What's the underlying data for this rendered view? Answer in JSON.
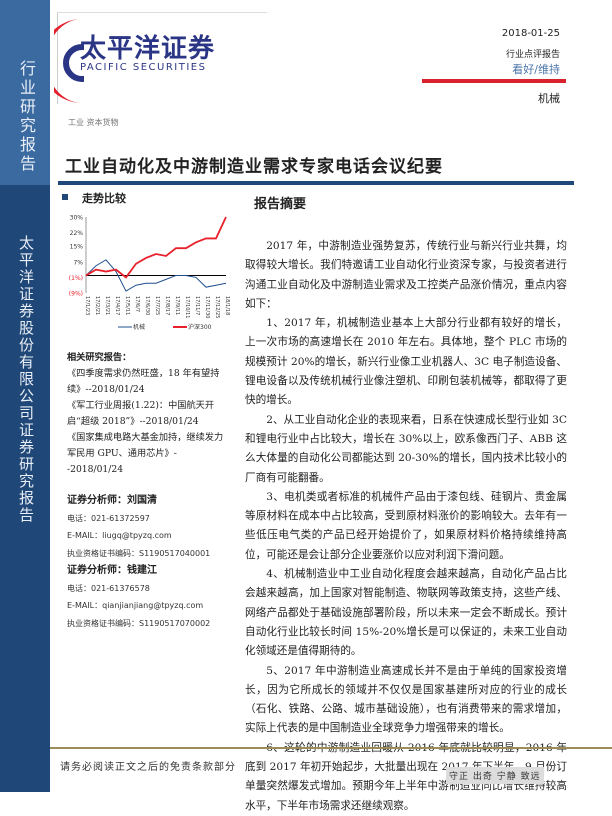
{
  "sidebar": {
    "top_label": "行业研究报告",
    "bottom_label": "太平洋证券股份有限公司证券研究报告"
  },
  "logo": {
    "cn": "太平洋证券",
    "en": "PACIFIC SECURITIES"
  },
  "header": {
    "date": "2018-01-25",
    "report_type": "行业点评报告",
    "rating": "看好/维持",
    "sector": "机械"
  },
  "industry": "工业  资本货物",
  "title": "工业自动化及中游制造业需求专家电话会议纪要",
  "trend_title": "走势比较",
  "summary_title": "报告摘要",
  "chart_data": {
    "type": "line",
    "categories": [
      "17/1/23",
      "17/2/21",
      "17/3/21",
      "17/4/17",
      "17/5/11",
      "17/6/7",
      "17/6/30",
      "17/7/25",
      "17/8/17",
      "17/9/11",
      "17/10/11",
      "17/11/7",
      "17/11/30",
      "17/12/25",
      "18/1/18"
    ],
    "y_ticks": [
      "30%",
      "22%",
      "15%",
      "7%",
      "(1%)",
      "(9%)"
    ],
    "ylim": [
      -9,
      30
    ],
    "series": [
      {
        "name": "机械",
        "color": "#1f4f8f",
        "values": [
          0,
          5,
          8,
          2,
          -8,
          -5,
          -4,
          -4,
          -2,
          0,
          0,
          -1,
          -6,
          -5,
          -4
        ]
      },
      {
        "name": "沪深300",
        "color": "#e8212c",
        "values": [
          0,
          3,
          2,
          3,
          -1,
          6,
          9,
          11,
          10,
          14,
          14,
          17,
          19,
          19,
          30
        ]
      }
    ],
    "legend": "bottom"
  },
  "related": {
    "heading": "相关研究报告：",
    "items": [
      "《四季度需求仍然旺盛，18 年有望持续》--2018/01/24",
      "《军工行业周报(1.22)：中国航天开启“超级 2018”》--2018/01/24",
      "《国家集成电路大基金加持，继续发力军民用 GPU、通用芯片》--2018/01/24"
    ]
  },
  "analysts": [
    {
      "title": "证券分析师：刘国清",
      "phone": "电话：021-61372597",
      "email": "E-MAIL：liugq@tpyzq.com",
      "cert": "执业资格证书编码：S1190517040001"
    },
    {
      "title": "证券分析师：钱建江",
      "phone": "电话：021-61376578",
      "email": "E-MAIL：qianjianjiang@tpyzq.com",
      "cert": "执业资格证书编码：S1190517070002"
    }
  ],
  "paragraphs": [
    "2017 年，中游制造业强势复苏，传统行业与新兴行业共舞，均取得较大增长。我们特邀请工业自动化行业资深专家，与投资者进行沟通工业自动化及中游制造业需求及工控类产品涨价情况，重点内容如下：",
    "1、2017 年，机械制造业基本上大部分行业都有较好的增长，上一次市场的高速增长在 2010 年左右。具体地，整个 PLC 市场的规模预计 20%的增长，新兴行业像工业机器人、3C 电子制造设备、锂电设备以及传统机械行业像注塑机、印刷包装机械等，都取得了更快的增长。",
    "2、从工业自动化企业的表现来看，日系在快速成长型行业如 3C 和锂电行业中占比较大，增长在 30%以上，欧系像西门子、ABB 这么大体量的自动化公司都能达到 20-30%的增长，国内技术比较小的厂商有可能翻番。",
    "3、电机类或者标准的机械件产品由于漆包线、硅钢片、贵金属等原材料在成本中占比较高，受到原材料涨价的影响较大。去年有一些低压电气类的产品已经开始提价了，如果原材料价格持续维持高位，可能还是会让部分企业要涨价以应对利润下滑问题。",
    "4、机械制造业中工业自动化程度会越来越高，自动化产品占比会越来越高，加上国家对智能制造、物联网等政策支持，这些产线、网络产品都处于基础设施部署阶段，所以未来一定会不断成长。预计自动化行业比较长时间 15%-20%增长是可以保证的，未来工业自动化领域还是值得期待的。",
    "5、2017 年中游制造业高速成长并不是由于单纯的国家投资增长，因为它所成长的领域并不仅仅是国家基建所对应的行业的成长（石化、铁路、公路、城市基础设施），也有消费带来的需求增加，实际上代表的是中国制造业全球竞争力增强带来的增长。",
    "6、这轮的中游制造业回暖从 2016 年底就比较明显，2016 年底到 2017 年初开始起步，大批量出现在 2017 年下半年，9 月份订单量突然爆发式增加。预期今年上半年中游制造业同比增长维持较高水平，下半年市场需求还继续观察。"
  ],
  "footer": {
    "disclaimer": "请务必阅读正文之后的免责条款部分",
    "motto": "守正 出奇 宁静 致远"
  }
}
